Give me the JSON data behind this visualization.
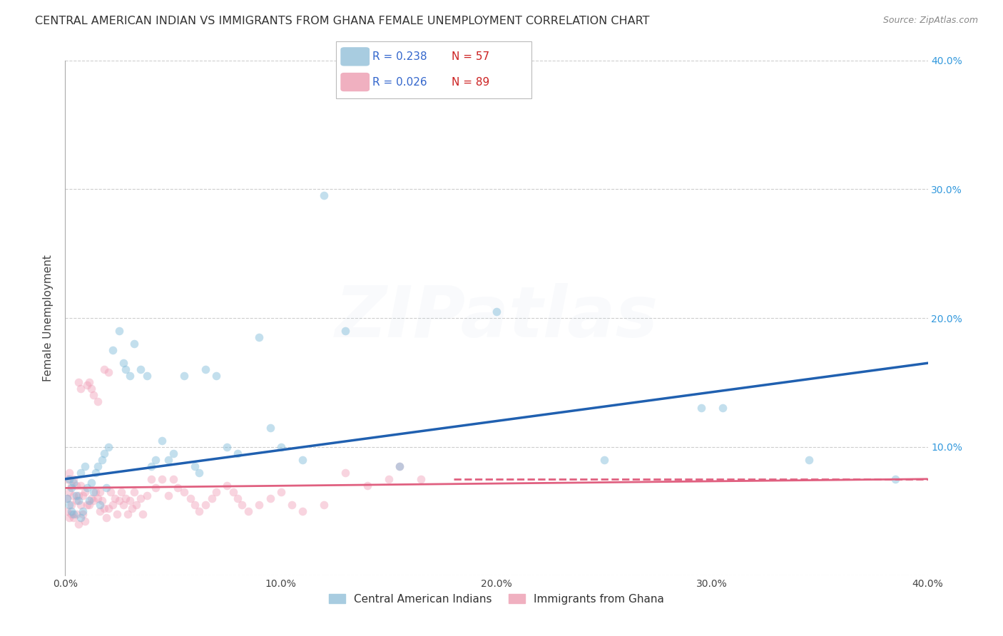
{
  "title": "CENTRAL AMERICAN INDIAN VS IMMIGRANTS FROM GHANA FEMALE UNEMPLOYMENT CORRELATION CHART",
  "source": "Source: ZipAtlas.com",
  "ylabel": "Female Unemployment",
  "xlim": [
    0.0,
    0.4
  ],
  "ylim": [
    0.0,
    0.4
  ],
  "xticks": [
    0.0,
    0.1,
    0.2,
    0.3,
    0.4
  ],
  "yticks": [
    0.0,
    0.1,
    0.2,
    0.3,
    0.4
  ],
  "background_color": "#ffffff",
  "grid_color": "#c8c8c8",
  "blue_series": {
    "name": "Central American Indians",
    "R": 0.238,
    "N": 57,
    "color": "#7ab8d8",
    "edge_color": "#7ab8d8",
    "line_color": "#2060b0",
    "line_style": "solid",
    "x": [
      0.001,
      0.002,
      0.002,
      0.003,
      0.003,
      0.004,
      0.004,
      0.005,
      0.006,
      0.007,
      0.007,
      0.008,
      0.009,
      0.01,
      0.011,
      0.012,
      0.013,
      0.014,
      0.015,
      0.016,
      0.017,
      0.018,
      0.019,
      0.02,
      0.022,
      0.025,
      0.027,
      0.028,
      0.03,
      0.032,
      0.035,
      0.038,
      0.04,
      0.042,
      0.045,
      0.048,
      0.05,
      0.055,
      0.06,
      0.062,
      0.065,
      0.07,
      0.075,
      0.08,
      0.09,
      0.095,
      0.1,
      0.11,
      0.12,
      0.13,
      0.155,
      0.2,
      0.25,
      0.295,
      0.305,
      0.345,
      0.385
    ],
    "y": [
      0.06,
      0.055,
      0.075,
      0.05,
      0.068,
      0.048,
      0.072,
      0.062,
      0.058,
      0.045,
      0.08,
      0.05,
      0.085,
      0.068,
      0.058,
      0.072,
      0.065,
      0.08,
      0.085,
      0.055,
      0.09,
      0.095,
      0.068,
      0.1,
      0.175,
      0.19,
      0.165,
      0.16,
      0.155,
      0.18,
      0.16,
      0.155,
      0.085,
      0.09,
      0.105,
      0.09,
      0.095,
      0.155,
      0.085,
      0.08,
      0.16,
      0.155,
      0.1,
      0.095,
      0.185,
      0.115,
      0.1,
      0.09,
      0.295,
      0.19,
      0.085,
      0.205,
      0.09,
      0.13,
      0.13,
      0.09,
      0.075
    ]
  },
  "pink_series": {
    "name": "Immigrants from Ghana",
    "R": 0.026,
    "N": 89,
    "color": "#f0a0b8",
    "edge_color": "#f0a0b8",
    "line_color": "#e06080",
    "line_style": "dashed",
    "x": [
      0.001,
      0.001,
      0.001,
      0.002,
      0.002,
      0.002,
      0.003,
      0.003,
      0.003,
      0.004,
      0.004,
      0.004,
      0.005,
      0.005,
      0.005,
      0.006,
      0.006,
      0.006,
      0.007,
      0.007,
      0.007,
      0.008,
      0.008,
      0.009,
      0.009,
      0.01,
      0.01,
      0.011,
      0.011,
      0.012,
      0.012,
      0.013,
      0.013,
      0.014,
      0.015,
      0.015,
      0.016,
      0.016,
      0.017,
      0.018,
      0.018,
      0.019,
      0.02,
      0.02,
      0.021,
      0.022,
      0.023,
      0.024,
      0.025,
      0.026,
      0.027,
      0.028,
      0.029,
      0.03,
      0.031,
      0.032,
      0.033,
      0.035,
      0.036,
      0.038,
      0.04,
      0.042,
      0.045,
      0.048,
      0.05,
      0.052,
      0.055,
      0.058,
      0.06,
      0.062,
      0.065,
      0.068,
      0.07,
      0.075,
      0.078,
      0.08,
      0.082,
      0.085,
      0.09,
      0.095,
      0.1,
      0.105,
      0.11,
      0.12,
      0.13,
      0.14,
      0.15,
      0.155,
      0.165
    ],
    "y": [
      0.06,
      0.075,
      0.05,
      0.065,
      0.045,
      0.08,
      0.055,
      0.07,
      0.048,
      0.062,
      0.045,
      0.075,
      0.058,
      0.07,
      0.048,
      0.062,
      0.15,
      0.04,
      0.145,
      0.055,
      0.07,
      0.062,
      0.048,
      0.065,
      0.042,
      0.148,
      0.055,
      0.15,
      0.055,
      0.145,
      0.06,
      0.14,
      0.058,
      0.065,
      0.135,
      0.06,
      0.065,
      0.05,
      0.058,
      0.16,
      0.052,
      0.045,
      0.158,
      0.052,
      0.065,
      0.055,
      0.06,
      0.048,
      0.058,
      0.065,
      0.055,
      0.06,
      0.048,
      0.058,
      0.052,
      0.065,
      0.055,
      0.06,
      0.048,
      0.062,
      0.075,
      0.068,
      0.075,
      0.062,
      0.075,
      0.068,
      0.065,
      0.06,
      0.055,
      0.05,
      0.055,
      0.06,
      0.065,
      0.07,
      0.065,
      0.06,
      0.055,
      0.05,
      0.055,
      0.06,
      0.065,
      0.055,
      0.05,
      0.055,
      0.08,
      0.07,
      0.075,
      0.085,
      0.075
    ]
  },
  "blue_line": {
    "x0": 0.0,
    "y0": 0.075,
    "x1": 0.4,
    "y1": 0.165
  },
  "pink_line": {
    "x0": 0.0,
    "y0": 0.068,
    "x1": 0.18,
    "y1": 0.075,
    "x2": 0.4,
    "y2": 0.075
  },
  "title_fontsize": 11.5,
  "axis_label_fontsize": 11,
  "tick_fontsize": 10,
  "marker_size": 70,
  "marker_alpha": 0.45,
  "watermark_text": "ZIPatlas",
  "watermark_alpha": 0.07
}
